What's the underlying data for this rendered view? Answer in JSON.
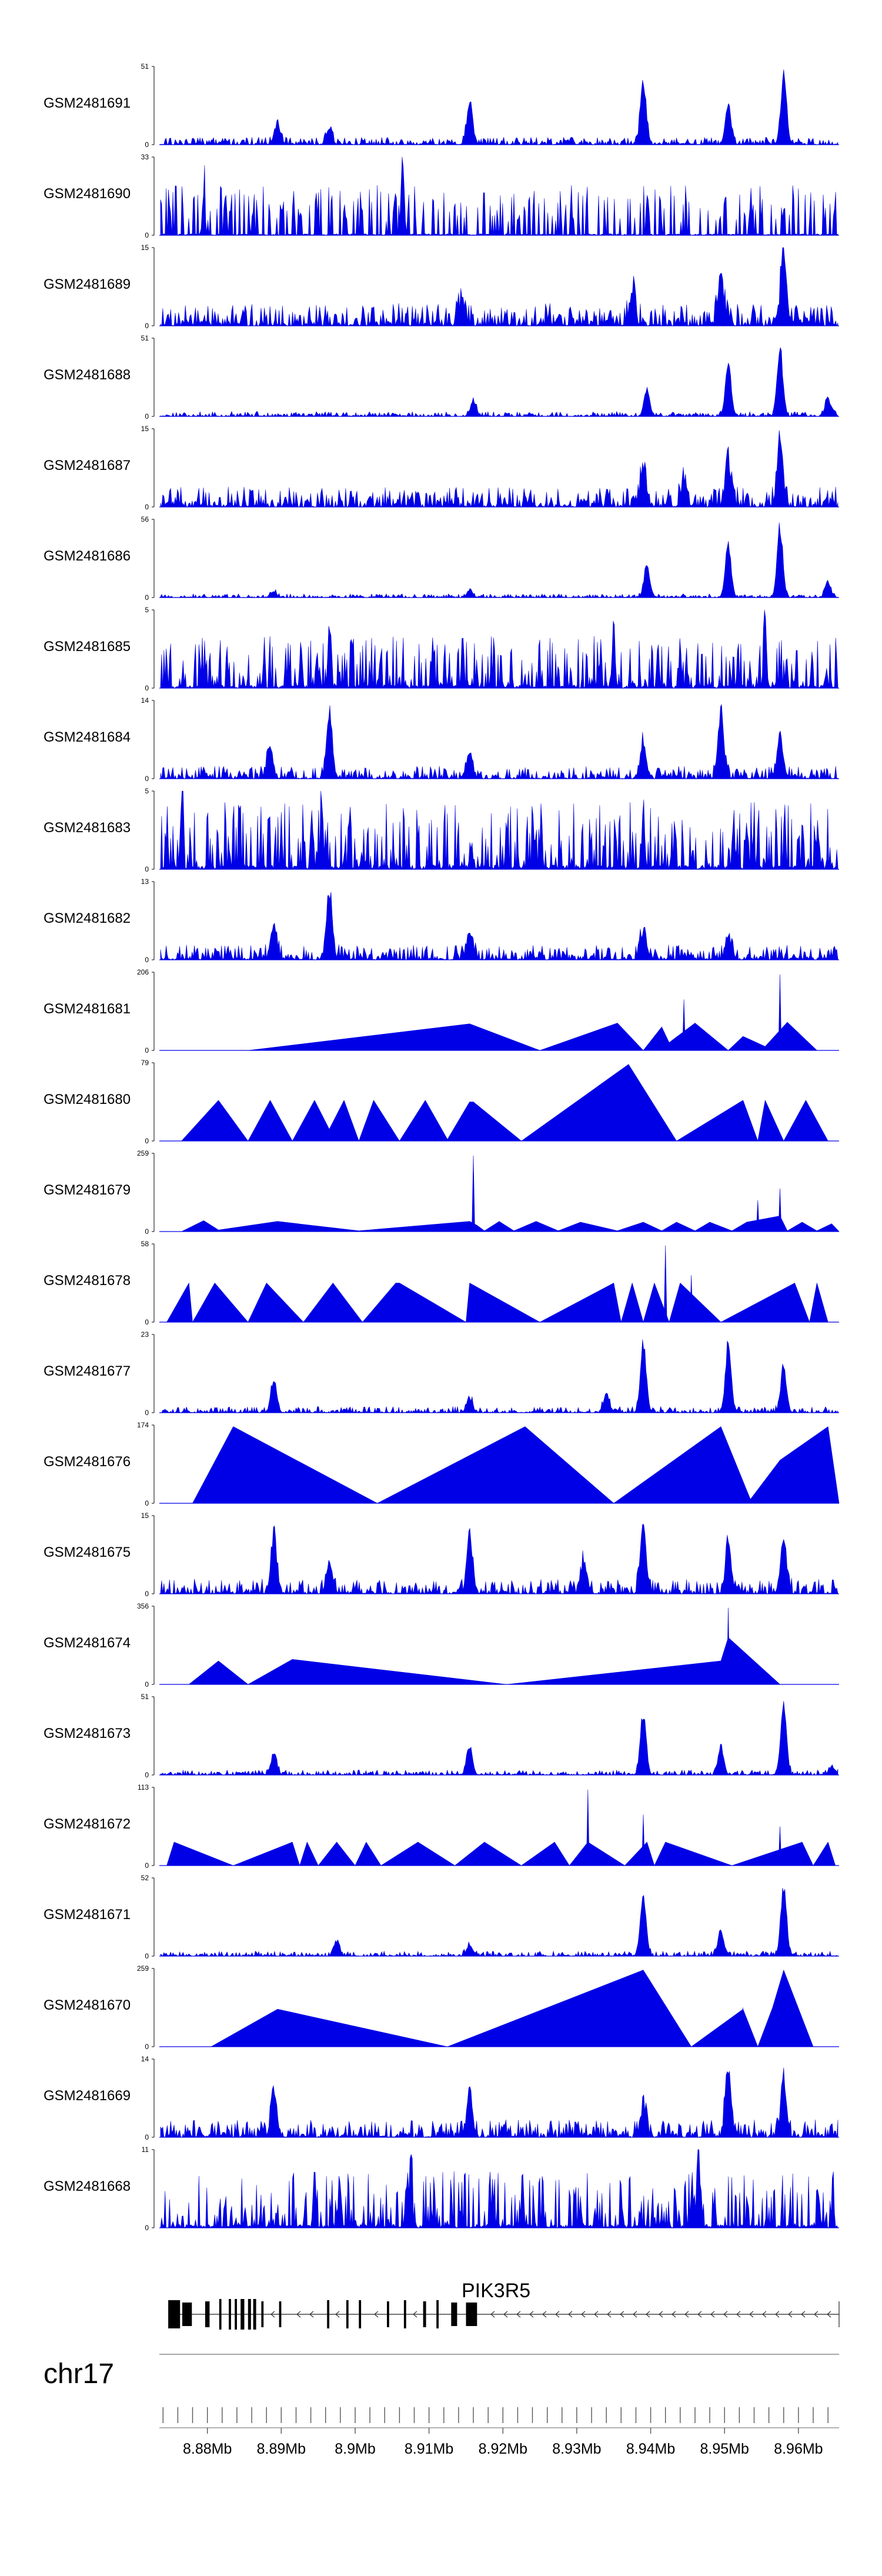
{
  "colors": {
    "signal": "#0000e6",
    "text": "#000000",
    "exon": "#000000",
    "axis": "#888888"
  },
  "chart_data": {
    "type": "area",
    "title": "",
    "genome": {
      "chromosome": "chr17",
      "range_mb": [
        8.8735,
        8.9655
      ],
      "gene": {
        "name": "PIK3R5",
        "strand": "-",
        "start_mb": 8.8747,
        "end_mb": 8.9655
      },
      "tick_labels": [
        "8.88Mb",
        "8.89Mb",
        "8.9Mb",
        "8.91Mb",
        "8.92Mb",
        "8.93Mb",
        "8.94Mb",
        "8.95Mb",
        "8.96Mb"
      ],
      "tick_values": [
        8.88,
        8.89,
        8.9,
        8.91,
        8.92,
        8.93,
        8.94,
        8.95,
        8.96
      ]
    },
    "tracks": [
      {
        "name": "GSM2481691",
        "ymax": "51",
        "ymin": "0",
        "style": "peaks",
        "seed": 11,
        "base": 0.06,
        "peaks": [
          [
            8.8895,
            0.25
          ],
          [
            8.8965,
            0.2
          ],
          [
            8.9155,
            0.55
          ],
          [
            8.939,
            0.85
          ],
          [
            8.9505,
            0.55
          ],
          [
            8.958,
            0.95
          ]
        ]
      },
      {
        "name": "GSM2481690",
        "ymax": "33",
        "ymin": "0",
        "style": "spiky",
        "seed": 12,
        "base": 0.4,
        "peaks": [
          [
            8.9065,
            0.98
          ],
          [
            8.8795,
            0.6
          ]
        ]
      },
      {
        "name": "GSM2481689",
        "ymax": "15",
        "ymin": "0",
        "style": "peaks",
        "seed": 13,
        "base": 0.18,
        "peaks": [
          [
            8.9495,
            0.65
          ],
          [
            8.958,
            0.95
          ],
          [
            8.9375,
            0.4
          ],
          [
            8.9145,
            0.35
          ]
        ]
      },
      {
        "name": "GSM2481688",
        "ymax": "51",
        "ymin": "0",
        "style": "peaks",
        "seed": 14,
        "base": 0.04,
        "peaks": [
          [
            8.9395,
            0.35
          ],
          [
            8.9505,
            0.7
          ],
          [
            8.9575,
            0.95
          ],
          [
            8.964,
            0.25
          ],
          [
            8.916,
            0.22
          ]
        ]
      },
      {
        "name": "GSM2481687",
        "ymax": "15",
        "ymin": "0",
        "style": "peaks",
        "seed": 15,
        "base": 0.16,
        "peaks": [
          [
            8.939,
            0.5
          ],
          [
            8.9505,
            0.55
          ],
          [
            8.9575,
            0.95
          ],
          [
            8.9445,
            0.3
          ]
        ]
      },
      {
        "name": "GSM2481686",
        "ymax": "56",
        "ymin": "0",
        "style": "peaks",
        "seed": 16,
        "base": 0.03,
        "peaks": [
          [
            8.9395,
            0.45
          ],
          [
            8.9505,
            0.75
          ],
          [
            8.9575,
            0.98
          ],
          [
            8.964,
            0.2
          ],
          [
            8.889,
            0.08
          ],
          [
            8.9155,
            0.1
          ]
        ]
      },
      {
        "name": "GSM2481685",
        "ymax": "5",
        "ymin": "0",
        "style": "dense",
        "seed": 17,
        "base": 0.35,
        "peaks": [
          [
            8.8965,
            0.95
          ],
          [
            8.9555,
            0.95
          ],
          [
            8.935,
            0.95
          ]
        ]
      },
      {
        "name": "GSM2481684",
        "ymax": "14",
        "ymin": "0",
        "style": "peaks",
        "seed": 18,
        "base": 0.1,
        "peaks": [
          [
            8.8965,
            0.92
          ],
          [
            8.8885,
            0.45
          ],
          [
            8.9495,
            0.92
          ],
          [
            8.939,
            0.5
          ],
          [
            8.9575,
            0.6
          ],
          [
            8.9155,
            0.35
          ]
        ]
      },
      {
        "name": "GSM2481683",
        "ymax": "5",
        "ymin": "0",
        "style": "dense",
        "seed": 19,
        "base": 0.45,
        "peaks": [
          [
            8.8955,
            0.95
          ],
          [
            8.8765,
            0.95
          ],
          [
            8.939,
            0.9
          ]
        ]
      },
      {
        "name": "GSM2481682",
        "ymax": "13",
        "ymin": "0",
        "style": "peaks",
        "seed": 20,
        "base": 0.12,
        "peaks": [
          [
            8.8965,
            0.95
          ],
          [
            8.889,
            0.45
          ],
          [
            8.9155,
            0.38
          ],
          [
            8.939,
            0.38
          ],
          [
            8.9505,
            0.3
          ]
        ]
      },
      {
        "name": "GSM2481681",
        "ymax": "206",
        "ymin": "0",
        "style": "tri",
        "seed": 21,
        "points": [
          [
            8.8855,
            0
          ],
          [
            8.9155,
            0.34
          ],
          [
            8.925,
            0
          ],
          [
            8.9355,
            0.35
          ],
          [
            8.939,
            0
          ],
          [
            8.9415,
            0.3
          ],
          [
            8.9425,
            0.1
          ],
          [
            8.946,
            0.35
          ],
          [
            8.9505,
            0
          ],
          [
            8.9525,
            0.18
          ],
          [
            8.9555,
            0.05
          ],
          [
            8.9585,
            0.36
          ],
          [
            8.9625,
            0
          ]
        ],
        "spikes": [
          [
            8.9445,
            0.65
          ],
          [
            8.9575,
            0.97
          ]
        ]
      },
      {
        "name": "GSM2481680",
        "ymax": "79",
        "ymin": "0",
        "style": "tri",
        "seed": 22,
        "points": [
          [
            8.8765,
            0
          ],
          [
            8.8815,
            0.52
          ],
          [
            8.8855,
            0
          ],
          [
            8.8885,
            0.52
          ],
          [
            8.8915,
            0
          ],
          [
            8.8945,
            0.52
          ],
          [
            8.8965,
            0.15
          ],
          [
            8.8985,
            0.52
          ],
          [
            8.9005,
            0
          ],
          [
            8.9025,
            0.52
          ],
          [
            8.906,
            0
          ],
          [
            8.9095,
            0.52
          ],
          [
            8.9125,
            0.02
          ],
          [
            8.9155,
            0.5
          ],
          [
            8.916,
            0.5
          ],
          [
            8.9225,
            0
          ],
          [
            8.937,
            0.98
          ],
          [
            8.9435,
            0
          ],
          [
            8.9525,
            0.52
          ],
          [
            8.9545,
            0
          ],
          [
            8.9555,
            0.52
          ],
          [
            8.958,
            0
          ],
          [
            8.961,
            0.52
          ],
          [
            8.964,
            0
          ]
        ]
      },
      {
        "name": "GSM2481679",
        "ymax": "259",
        "ymin": "0",
        "style": "tri",
        "seed": 23,
        "points": [
          [
            8.8765,
            0
          ],
          [
            8.8795,
            0.14
          ],
          [
            8.8815,
            0.02
          ],
          [
            8.8895,
            0.13
          ],
          [
            8.9005,
            0.01
          ],
          [
            8.9155,
            0.13
          ],
          [
            8.9165,
            0.08
          ],
          [
            8.9175,
            0.01
          ],
          [
            8.9195,
            0.13
          ],
          [
            8.9215,
            0.01
          ],
          [
            8.9245,
            0.13
          ],
          [
            8.9275,
            0.01
          ],
          [
            8.9305,
            0.12
          ],
          [
            8.9355,
            0.01
          ],
          [
            8.939,
            0.12
          ],
          [
            8.9415,
            0.01
          ],
          [
            8.9435,
            0.12
          ],
          [
            8.946,
            0.01
          ],
          [
            8.948,
            0.12
          ],
          [
            8.951,
            0.01
          ],
          [
            8.953,
            0.12
          ],
          [
            8.9575,
            0.2
          ],
          [
            8.9585,
            0.01
          ],
          [
            8.9605,
            0.12
          ],
          [
            8.9625,
            0.01
          ],
          [
            8.9645,
            0.1
          ],
          [
            8.9655,
            0
          ]
        ],
        "spikes": [
          [
            8.916,
            0.97
          ],
          [
            8.9575,
            0.55
          ],
          [
            8.9545,
            0.4
          ]
        ]
      },
      {
        "name": "GSM2481678",
        "ymax": "58",
        "ymin": "0",
        "style": "tri",
        "seed": 24,
        "points": [
          [
            8.8745,
            0
          ],
          [
            8.8775,
            0.5
          ],
          [
            8.878,
            0
          ],
          [
            8.881,
            0.5
          ],
          [
            8.8855,
            0
          ],
          [
            8.888,
            0.5
          ],
          [
            8.893,
            0
          ],
          [
            8.897,
            0.5
          ],
          [
            8.901,
            0
          ],
          [
            8.9055,
            0.5
          ],
          [
            8.906,
            0.5
          ],
          [
            8.915,
            0
          ],
          [
            8.9155,
            0.5
          ],
          [
            8.925,
            0
          ],
          [
            8.935,
            0.5
          ],
          [
            8.936,
            0
          ],
          [
            8.9375,
            0.5
          ],
          [
            8.939,
            0
          ],
          [
            8.9405,
            0.5
          ],
          [
            8.9425,
            0
          ],
          [
            8.944,
            0.5
          ],
          [
            8.9495,
            0
          ],
          [
            8.9595,
            0.5
          ],
          [
            8.9615,
            0
          ],
          [
            8.9625,
            0.5
          ],
          [
            8.964,
            0
          ]
        ],
        "spikes": [
          [
            8.942,
            0.98
          ],
          [
            8.9455,
            0.6
          ]
        ]
      },
      {
        "name": "GSM2481677",
        "ymax": "23",
        "ymin": "0",
        "style": "peaks",
        "seed": 25,
        "base": 0.05,
        "peaks": [
          [
            8.889,
            0.45
          ],
          [
            8.9155,
            0.2
          ],
          [
            8.939,
            0.95
          ],
          [
            8.9505,
            0.95
          ],
          [
            8.958,
            0.6
          ],
          [
            8.934,
            0.25
          ]
        ]
      },
      {
        "name": "GSM2481676",
        "ymax": "174",
        "ymin": "0",
        "style": "tri",
        "seed": 26,
        "points": [
          [
            8.878,
            0
          ],
          [
            8.8835,
            0.98
          ],
          [
            8.903,
            0
          ],
          [
            8.923,
            0.98
          ],
          [
            8.935,
            0
          ],
          [
            8.9495,
            0.98
          ],
          [
            8.9535,
            0.05
          ],
          [
            8.9575,
            0.55
          ],
          [
            8.964,
            0.98
          ],
          [
            8.9655,
            0
          ]
        ]
      },
      {
        "name": "GSM2481675",
        "ymax": "15",
        "ymin": "0",
        "style": "peaks",
        "seed": 27,
        "base": 0.12,
        "peaks": [
          [
            8.889,
            0.72
          ],
          [
            8.8965,
            0.45
          ],
          [
            8.9155,
            0.72
          ],
          [
            8.939,
            0.95
          ],
          [
            8.9505,
            0.7
          ],
          [
            8.958,
            0.7
          ],
          [
            8.931,
            0.45
          ]
        ]
      },
      {
        "name": "GSM2481674",
        "ymax": "356",
        "ymin": "0",
        "style": "tri",
        "seed": 28,
        "points": [
          [
            8.8775,
            0
          ],
          [
            8.8815,
            0.3
          ],
          [
            8.8855,
            0
          ],
          [
            8.8915,
            0.32
          ],
          [
            8.9205,
            0
          ],
          [
            8.9495,
            0.3
          ],
          [
            8.9505,
            0.6
          ],
          [
            8.9575,
            0
          ]
        ],
        "spikes": [
          [
            8.9505,
            0.98
          ]
        ]
      },
      {
        "name": "GSM2481673",
        "ymax": "51",
        "ymin": "0",
        "style": "peaks",
        "seed": 29,
        "base": 0.04,
        "peaks": [
          [
            8.889,
            0.3
          ],
          [
            8.9155,
            0.4
          ],
          [
            8.939,
            0.85
          ],
          [
            8.9495,
            0.4
          ],
          [
            8.958,
            0.97
          ],
          [
            8.9645,
            0.12
          ]
        ]
      },
      {
        "name": "GSM2481672",
        "ymax": "113",
        "ymin": "0",
        "style": "tri",
        "seed": 29,
        "points": [
          [
            8.8745,
            0
          ],
          [
            8.8755,
            0.3
          ],
          [
            8.8835,
            0
          ],
          [
            8.8915,
            0.3
          ],
          [
            8.8925,
            0
          ],
          [
            8.8935,
            0.3
          ],
          [
            8.895,
            0
          ],
          [
            8.8975,
            0.3
          ],
          [
            8.9,
            0
          ],
          [
            8.9015,
            0.3
          ],
          [
            8.9035,
            0
          ],
          [
            8.9085,
            0.3
          ],
          [
            8.9135,
            0
          ],
          [
            8.9175,
            0.3
          ],
          [
            8.9225,
            0
          ],
          [
            8.927,
            0.3
          ],
          [
            8.929,
            0
          ],
          [
            8.9315,
            0.3
          ],
          [
            8.9365,
            0
          ],
          [
            8.9395,
            0.3
          ],
          [
            8.9405,
            0
          ],
          [
            8.942,
            0.3
          ],
          [
            8.951,
            0
          ],
          [
            8.9605,
            0.3
          ],
          [
            8.962,
            0
          ],
          [
            8.964,
            0.3
          ],
          [
            8.965,
            0
          ]
        ],
        "spikes": [
          [
            8.9315,
            0.97
          ],
          [
            8.939,
            0.65
          ],
          [
            8.9575,
            0.5
          ]
        ]
      },
      {
        "name": "GSM2481671",
        "ymax": "52",
        "ymin": "0",
        "style": "peaks",
        "seed": 31,
        "base": 0.04,
        "peaks": [
          [
            8.939,
            0.85
          ],
          [
            8.958,
            0.95
          ],
          [
            8.9495,
            0.35
          ],
          [
            8.9155,
            0.15
          ],
          [
            8.8975,
            0.2
          ]
        ]
      },
      {
        "name": "GSM2481670",
        "ymax": "259",
        "ymin": "0",
        "style": "tri",
        "seed": 32,
        "points": [
          [
            8.8805,
            0
          ],
          [
            8.8895,
            0.48
          ],
          [
            8.9125,
            0
          ],
          [
            8.939,
            0.98
          ],
          [
            8.9455,
            0
          ],
          [
            8.9525,
            0.48
          ],
          [
            8.9545,
            0
          ],
          [
            8.9565,
            0.5
          ],
          [
            8.958,
            0.98
          ],
          [
            8.962,
            0
          ]
        ],
        "spikes": [
          [
            8.9525,
            0.5
          ]
        ]
      },
      {
        "name": "GSM2481669",
        "ymax": "14",
        "ymin": "0",
        "style": "peaks",
        "seed": 33,
        "base": 0.14,
        "peaks": [
          [
            8.889,
            0.65
          ],
          [
            8.9155,
            0.6
          ],
          [
            8.9505,
            0.95
          ],
          [
            8.958,
            0.75
          ],
          [
            8.939,
            0.4
          ]
        ]
      },
      {
        "name": "GSM2481668",
        "ymax": "11",
        "ymin": "0",
        "style": "dense",
        "seed": 34,
        "base": 0.38,
        "peaks": [
          [
            8.9075,
            0.95
          ],
          [
            8.8945,
            0.85
          ],
          [
            8.9465,
            0.85
          ]
        ]
      }
    ]
  }
}
